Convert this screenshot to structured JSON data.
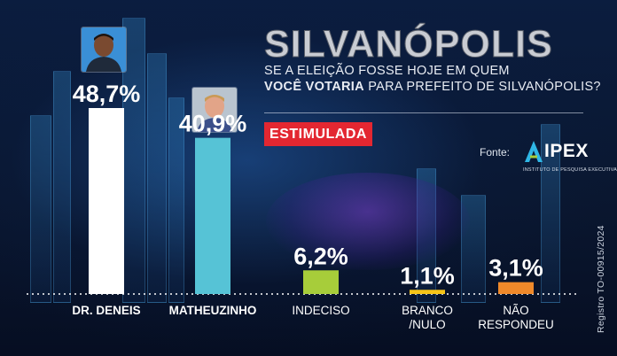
{
  "header": {
    "title": "SILVANÓPOLIS",
    "question_line1": "SE A ELEIÇÃO FOSSE HOJE EM QUEM",
    "question_line2_bold": "VOCÊ VOTARIA",
    "question_line2_rest": " PARA PREFEITO DE SILVANÓPOLIS?",
    "badge": "ESTIMULADA"
  },
  "source": {
    "label": "Fonte:",
    "logo_text": "IPEX",
    "logo_subtitle": "INSTITUTO DE PESQUISA EXECUTIVA"
  },
  "registro": "Registro TO-00915/2024",
  "colors": {
    "badge": "#e32731",
    "dr_deneis": "#ffffff",
    "matheuzinho": "#56c3d6",
    "indeciso": "#a7cd3a",
    "branco_nulo": "#f6c418",
    "nao_respondeu": "#f0892a",
    "background": "#0a1730"
  },
  "chart_data": {
    "type": "bar",
    "categories": [
      "DR. DENEIS",
      "MATHEUZINHO",
      "INDECISO",
      "BRANCO\n/NULO",
      "NÃO\nRESPONDEU"
    ],
    "values": [
      48.7,
      40.9,
      6.2,
      1.1,
      3.1
    ],
    "value_labels": [
      "48,7%",
      "40,9%",
      "6,2%",
      "1,1%",
      "3,1%"
    ],
    "colors": [
      "#ffffff",
      "#56c3d6",
      "#a7cd3a",
      "#f6c418",
      "#f0892a"
    ],
    "bold_categories": [
      true,
      true,
      false,
      false,
      false
    ],
    "ylim": [
      0,
      48.7
    ],
    "title": "",
    "xlabel": "",
    "ylabel": "",
    "grid": false,
    "legend": "none"
  }
}
